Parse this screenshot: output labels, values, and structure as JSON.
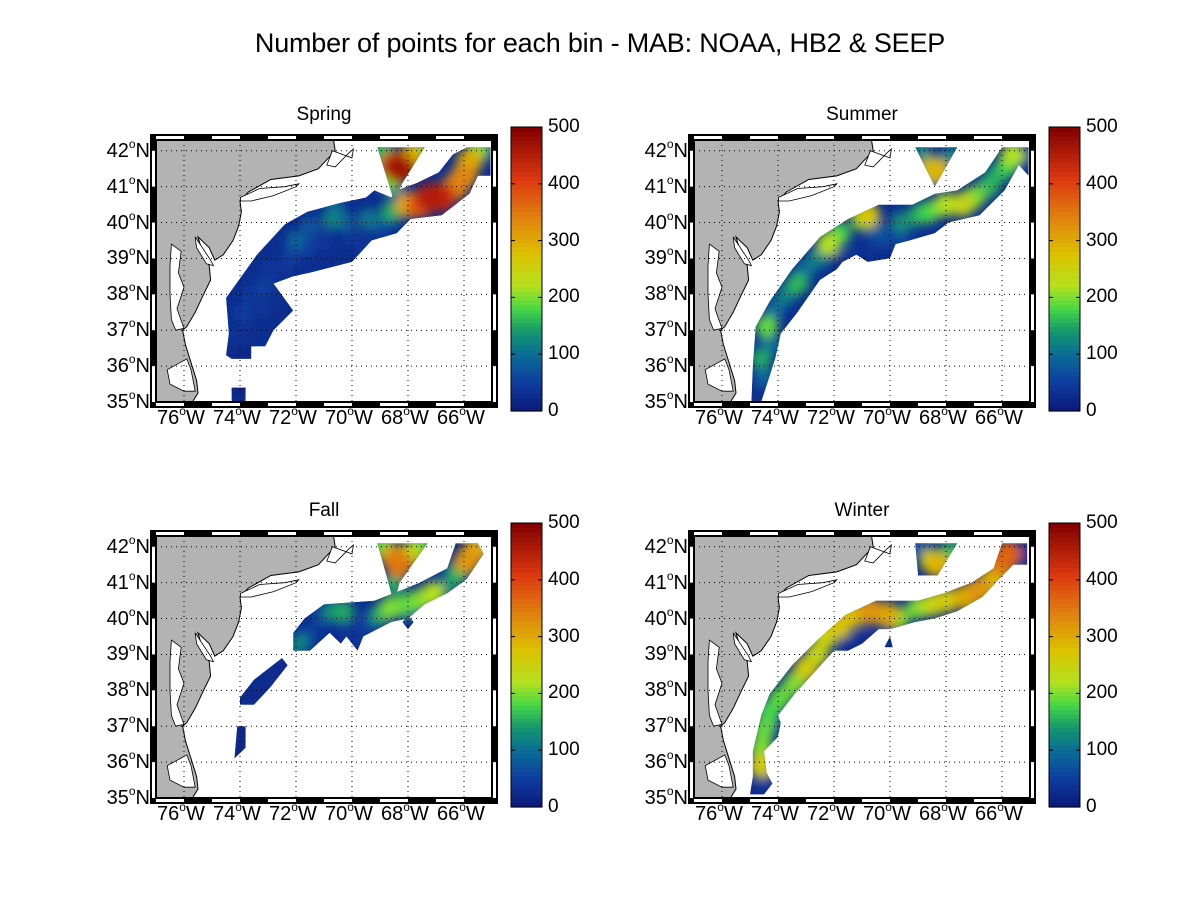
{
  "figure": {
    "title": "Number of points for each bin - MAB: NOAA, HB2 & SEEP"
  },
  "colors": {
    "land": "#b3b3b3",
    "ocean": "#ffffff",
    "frame": "#000000",
    "colormap": [
      "#00008f",
      "#0000ff",
      "#0080ff",
      "#00ffff",
      "#80ff80",
      "#ffff00",
      "#ff8000",
      "#ff0000",
      "#800000"
    ],
    "colormap_observed": [
      "#0b1f7a",
      "#0f4c9a",
      "#0b7a8a",
      "#1aa866",
      "#45e040",
      "#c8e020",
      "#e8c000",
      "#e08010",
      "#e03010",
      "#8a0808"
    ]
  },
  "chart_data": [
    {
      "type": "heatmap",
      "title": "Spring",
      "xlabel": "",
      "ylabel": "",
      "xlim": [
        -77,
        -65
      ],
      "ylim": [
        35,
        42.3
      ],
      "x_ticks": [
        {
          "value": -76,
          "num": "76",
          "deg": "o",
          "hem": "W"
        },
        {
          "value": -74,
          "num": "74",
          "deg": "o",
          "hem": "W"
        },
        {
          "value": -72,
          "num": "72",
          "deg": "o",
          "hem": "W"
        },
        {
          "value": -70,
          "num": "70",
          "deg": "o",
          "hem": "W"
        },
        {
          "value": -68,
          "num": "68",
          "deg": "o",
          "hem": "W"
        },
        {
          "value": -66,
          "num": "66",
          "deg": "o",
          "hem": "W"
        }
      ],
      "y_ticks": [
        {
          "value": 42,
          "num": "42",
          "deg": "o",
          "hem": "N"
        },
        {
          "value": 41,
          "num": "41",
          "deg": "o",
          "hem": "N"
        },
        {
          "value": 40,
          "num": "40",
          "deg": "o",
          "hem": "N"
        },
        {
          "value": 39,
          "num": "39",
          "deg": "o",
          "hem": "N"
        },
        {
          "value": 38,
          "num": "38",
          "deg": "o",
          "hem": "N"
        },
        {
          "value": 37,
          "num": "37",
          "deg": "o",
          "hem": "N"
        },
        {
          "value": 36,
          "num": "36",
          "deg": "o",
          "hem": "N"
        },
        {
          "value": 35,
          "num": "35",
          "deg": "o",
          "hem": "N"
        }
      ],
      "colorbar": {
        "clim": [
          0,
          500
        ],
        "ticks": [
          "0",
          "100",
          "200",
          "300",
          "400",
          "500"
        ]
      },
      "grid": true,
      "bins": [
        [
          -74.1,
          35.5,
          10
        ],
        [
          -73.9,
          35.5,
          10
        ],
        [
          -74.1,
          36.4,
          20
        ],
        [
          -73.7,
          36.4,
          20
        ],
        [
          -74.1,
          36.8,
          40
        ],
        [
          -73.6,
          36.9,
          30
        ],
        [
          -73.9,
          37.5,
          50
        ],
        [
          -73.5,
          37.6,
          30
        ],
        [
          -73.6,
          38.0,
          45
        ],
        [
          -73.1,
          38.2,
          55
        ],
        [
          -72.7,
          37.9,
          30
        ],
        [
          -72.6,
          37.5,
          25
        ],
        [
          -73.2,
          37.6,
          40
        ],
        [
          -72.9,
          38.7,
          40
        ],
        [
          -72.4,
          38.7,
          35
        ],
        [
          -72.2,
          39.0,
          50
        ],
        [
          -72.0,
          39.5,
          90
        ],
        [
          -71.6,
          39.3,
          50
        ],
        [
          -71.5,
          39.9,
          75
        ],
        [
          -71.0,
          39.5,
          40
        ],
        [
          -70.7,
          40.1,
          120
        ],
        [
          -70.6,
          40.4,
          90
        ],
        [
          -70.0,
          39.6,
          40
        ],
        [
          -69.6,
          39.4,
          40
        ],
        [
          -70.2,
          40.0,
          80
        ],
        [
          -69.4,
          40.1,
          110
        ],
        [
          -69.0,
          39.9,
          60
        ],
        [
          -68.6,
          40.2,
          90
        ],
        [
          -68.6,
          40.3,
          150
        ],
        [
          -68.0,
          40.5,
          300
        ],
        [
          -67.6,
          40.5,
          380
        ],
        [
          -67.2,
          40.7,
          450
        ],
        [
          -66.8,
          40.7,
          430
        ],
        [
          -66.3,
          41.0,
          340
        ],
        [
          -66.0,
          41.3,
          330
        ],
        [
          -65.8,
          41.7,
          300
        ],
        [
          -65.5,
          42.0,
          200
        ],
        [
          -65.3,
          42.0,
          60
        ],
        [
          -68.9,
          42.0,
          160
        ],
        [
          -68.5,
          41.6,
          400
        ],
        [
          -68.3,
          41.5,
          470
        ],
        [
          -67.9,
          41.8,
          300
        ],
        [
          -68.6,
          41.2,
          200
        ],
        [
          -68.5,
          40.9,
          80
        ],
        [
          -67.7,
          42.0,
          200
        ],
        [
          -69.0,
          41.6,
          150
        ]
      ]
    },
    {
      "type": "heatmap",
      "title": "Summer",
      "xlim": [
        -77,
        -65
      ],
      "ylim": [
        35,
        42.3
      ],
      "x_ticks": [
        {
          "value": -76,
          "num": "76",
          "deg": "o",
          "hem": "W"
        },
        {
          "value": -74,
          "num": "74",
          "deg": "o",
          "hem": "W"
        },
        {
          "value": -72,
          "num": "72",
          "deg": "o",
          "hem": "W"
        },
        {
          "value": -70,
          "num": "70",
          "deg": "o",
          "hem": "W"
        },
        {
          "value": -68,
          "num": "68",
          "deg": "o",
          "hem": "W"
        },
        {
          "value": -66,
          "num": "66",
          "deg": "o",
          "hem": "W"
        }
      ],
      "y_ticks": [
        {
          "value": 42,
          "num": "42",
          "deg": "o",
          "hem": "N"
        },
        {
          "value": 41,
          "num": "41",
          "deg": "o",
          "hem": "N"
        },
        {
          "value": 40,
          "num": "40",
          "deg": "o",
          "hem": "N"
        },
        {
          "value": 39,
          "num": "39",
          "deg": "o",
          "hem": "N"
        },
        {
          "value": 38,
          "num": "38",
          "deg": "o",
          "hem": "N"
        },
        {
          "value": 37,
          "num": "37",
          "deg": "o",
          "hem": "N"
        },
        {
          "value": 36,
          "num": "36",
          "deg": "o",
          "hem": "N"
        },
        {
          "value": 35,
          "num": "35",
          "deg": "o",
          "hem": "N"
        }
      ],
      "colorbar": {
        "clim": [
          0,
          500
        ],
        "ticks": [
          "0",
          "100",
          "200",
          "300",
          "400",
          "500"
        ]
      },
      "grid": true,
      "bins": [
        [
          -74.7,
          35.2,
          30
        ],
        [
          -74.5,
          35.7,
          90
        ],
        [
          -74.6,
          36.2,
          150
        ],
        [
          -74.3,
          36.6,
          100
        ],
        [
          -74.4,
          37.1,
          190
        ],
        [
          -74.1,
          37.6,
          100
        ],
        [
          -73.7,
          38.0,
          120
        ],
        [
          -73.3,
          38.3,
          160
        ],
        [
          -73.0,
          38.7,
          100
        ],
        [
          -72.6,
          39.0,
          120
        ],
        [
          -72.2,
          39.4,
          220
        ],
        [
          -71.8,
          39.7,
          180
        ],
        [
          -71.5,
          39.0,
          40
        ],
        [
          -71.9,
          38.9,
          20
        ],
        [
          -71.0,
          40.1,
          200
        ],
        [
          -70.8,
          40.2,
          270
        ],
        [
          -70.2,
          39.6,
          60
        ],
        [
          -70.5,
          39.4,
          40
        ],
        [
          -69.9,
          39.5,
          40
        ],
        [
          -70.5,
          39.8,
          80
        ],
        [
          -69.6,
          39.6,
          60
        ],
        [
          -69.6,
          40.0,
          130
        ],
        [
          -69.0,
          40.2,
          150
        ],
        [
          -68.6,
          40.3,
          180
        ],
        [
          -68.0,
          40.5,
          220
        ],
        [
          -67.4,
          40.5,
          240
        ],
        [
          -67.0,
          40.7,
          200
        ],
        [
          -66.5,
          41.0,
          160
        ],
        [
          -66.2,
          41.3,
          150
        ],
        [
          -65.8,
          41.6,
          180
        ],
        [
          -65.6,
          41.9,
          220
        ],
        [
          -65.2,
          41.8,
          40
        ],
        [
          -68.9,
          42.0,
          120
        ],
        [
          -68.5,
          41.5,
          260
        ],
        [
          -68.3,
          41.4,
          290
        ],
        [
          -67.9,
          41.8,
          120
        ],
        [
          -68.6,
          41.2,
          110
        ],
        [
          -67.6,
          42.0,
          80
        ]
      ]
    },
    {
      "type": "heatmap",
      "title": "Fall",
      "xlim": [
        -77,
        -65
      ],
      "ylim": [
        35,
        42.3
      ],
      "x_ticks": [
        {
          "value": -76,
          "num": "76",
          "deg": "o",
          "hem": "W"
        },
        {
          "value": -74,
          "num": "74",
          "deg": "o",
          "hem": "W"
        },
        {
          "value": -72,
          "num": "72",
          "deg": "o",
          "hem": "W"
        },
        {
          "value": -70,
          "num": "70",
          "deg": "o",
          "hem": "W"
        },
        {
          "value": -68,
          "num": "68",
          "deg": "o",
          "hem": "W"
        },
        {
          "value": -66,
          "num": "66",
          "deg": "o",
          "hem": "W"
        }
      ],
      "y_ticks": [
        {
          "value": 42,
          "num": "42",
          "deg": "o",
          "hem": "N"
        },
        {
          "value": 41,
          "num": "41",
          "deg": "o",
          "hem": "N"
        },
        {
          "value": 40,
          "num": "40",
          "deg": "o",
          "hem": "N"
        },
        {
          "value": 39,
          "num": "39",
          "deg": "o",
          "hem": "N"
        },
        {
          "value": 38,
          "num": "38",
          "deg": "o",
          "hem": "N"
        },
        {
          "value": 37,
          "num": "37",
          "deg": "o",
          "hem": "N"
        },
        {
          "value": 36,
          "num": "36",
          "deg": "o",
          "hem": "N"
        },
        {
          "value": 35,
          "num": "35",
          "deg": "o",
          "hem": "N"
        }
      ],
      "colorbar": {
        "clim": [
          0,
          500
        ],
        "ticks": [
          "0",
          "100",
          "200",
          "300",
          "400",
          "500"
        ]
      },
      "grid": true,
      "bins": [
        [
          -74.0,
          36.3,
          20
        ],
        [
          -73.9,
          36.8,
          20
        ],
        [
          -73.6,
          37.8,
          25
        ],
        [
          -73.2,
          38.0,
          25
        ],
        [
          -72.8,
          38.5,
          25
        ],
        [
          -72.4,
          38.7,
          25
        ],
        [
          -71.9,
          39.3,
          120
        ],
        [
          -71.6,
          39.5,
          60
        ],
        [
          -71.1,
          40.0,
          60
        ],
        [
          -70.7,
          40.2,
          130
        ],
        [
          -70.3,
          40.2,
          150
        ],
        [
          -70.2,
          39.7,
          40
        ],
        [
          -69.8,
          39.4,
          40
        ],
        [
          -69.4,
          39.9,
          60
        ],
        [
          -69.0,
          40.1,
          150
        ],
        [
          -68.6,
          40.3,
          200
        ],
        [
          -68.1,
          40.4,
          180
        ],
        [
          -67.6,
          40.5,
          200
        ],
        [
          -67.1,
          40.7,
          220
        ],
        [
          -66.5,
          41.0,
          130
        ],
        [
          -66.2,
          41.3,
          160
        ],
        [
          -65.9,
          41.6,
          320
        ],
        [
          -65.6,
          41.9,
          300
        ],
        [
          -65.3,
          42.0,
          120
        ],
        [
          -67.9,
          39.9,
          30
        ],
        [
          -68.9,
          42.0,
          190
        ],
        [
          -68.5,
          41.7,
          320
        ],
        [
          -68.3,
          41.5,
          350
        ],
        [
          -67.9,
          41.8,
          240
        ],
        [
          -68.5,
          41.0,
          150
        ],
        [
          -67.6,
          42.0,
          180
        ]
      ]
    },
    {
      "type": "heatmap",
      "title": "Winter",
      "xlim": [
        -77,
        -65
      ],
      "ylim": [
        35,
        42.3
      ],
      "x_ticks": [
        {
          "value": -76,
          "num": "76",
          "deg": "o",
          "hem": "W"
        },
        {
          "value": -74,
          "num": "74",
          "deg": "o",
          "hem": "W"
        },
        {
          "value": -72,
          "num": "72",
          "deg": "o",
          "hem": "W"
        },
        {
          "value": -70,
          "num": "70",
          "deg": "o",
          "hem": "W"
        },
        {
          "value": -68,
          "num": "68",
          "deg": "o",
          "hem": "W"
        },
        {
          "value": -66,
          "num": "66",
          "deg": "o",
          "hem": "W"
        }
      ],
      "y_ticks": [
        {
          "value": 42,
          "num": "42",
          "deg": "o",
          "hem": "N"
        },
        {
          "value": 41,
          "num": "41",
          "deg": "o",
          "hem": "N"
        },
        {
          "value": 40,
          "num": "40",
          "deg": "o",
          "hem": "N"
        },
        {
          "value": 39,
          "num": "39",
          "deg": "o",
          "hem": "N"
        },
        {
          "value": 38,
          "num": "38",
          "deg": "o",
          "hem": "N"
        },
        {
          "value": 37,
          "num": "37",
          "deg": "o",
          "hem": "N"
        },
        {
          "value": 36,
          "num": "36",
          "deg": "o",
          "hem": "N"
        },
        {
          "value": 35,
          "num": "35",
          "deg": "o",
          "hem": "N"
        }
      ],
      "colorbar": {
        "clim": [
          0,
          500
        ],
        "ticks": [
          "0",
          "100",
          "200",
          "300",
          "400",
          "500"
        ]
      },
      "grid": true,
      "bins": [
        [
          -74.7,
          35.2,
          30
        ],
        [
          -74.3,
          35.4,
          40
        ],
        [
          -74.6,
          35.9,
          260
        ],
        [
          -74.6,
          36.4,
          200
        ],
        [
          -74.5,
          36.9,
          190
        ],
        [
          -74.2,
          37.1,
          40
        ],
        [
          -74.3,
          37.4,
          180
        ],
        [
          -73.9,
          37.8,
          190
        ],
        [
          -73.4,
          38.2,
          200
        ],
        [
          -73.0,
          38.6,
          260
        ],
        [
          -72.6,
          39.0,
          240
        ],
        [
          -72.3,
          39.5,
          250
        ],
        [
          -71.8,
          39.8,
          270
        ],
        [
          -71.3,
          40.1,
          280
        ],
        [
          -70.7,
          40.2,
          320
        ],
        [
          -70.1,
          40.1,
          300
        ],
        [
          -71.5,
          39.3,
          30
        ],
        [
          -71.0,
          39.4,
          30
        ],
        [
          -70.0,
          39.4,
          30
        ],
        [
          -69.7,
          40.0,
          200
        ],
        [
          -69.0,
          40.3,
          200
        ],
        [
          -68.5,
          40.4,
          240
        ],
        [
          -68.0,
          40.5,
          260
        ],
        [
          -67.3,
          40.6,
          300
        ],
        [
          -66.8,
          40.8,
          320
        ],
        [
          -66.3,
          41.1,
          280
        ],
        [
          -66.0,
          41.5,
          340
        ],
        [
          -65.8,
          41.8,
          370
        ],
        [
          -65.2,
          41.8,
          30
        ],
        [
          -68.9,
          42.0,
          80
        ],
        [
          -68.5,
          41.6,
          250
        ],
        [
          -68.3,
          41.5,
          290
        ],
        [
          -67.9,
          41.8,
          160
        ],
        [
          -67.6,
          42.0,
          120
        ]
      ]
    }
  ]
}
